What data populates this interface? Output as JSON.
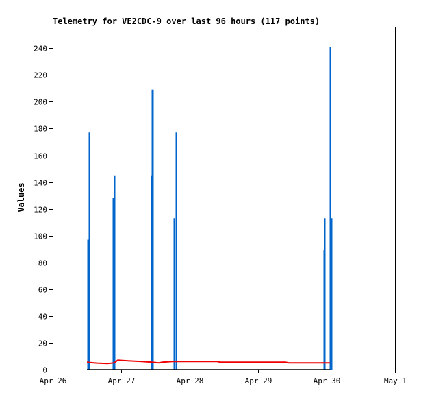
{
  "chart_data": {
    "type": "line",
    "title": "Telemetry for VE2CDC-9 over last 96 hours (117 points)",
    "xlabel": "",
    "ylabel": "Values",
    "x_axis": {
      "unit": "days since Apr 26 00:00",
      "range": [
        0,
        5
      ],
      "tick_labels": [
        "Apr 26",
        "Apr 27",
        "Apr 28",
        "Apr 29",
        "Apr 30",
        "May 1"
      ]
    },
    "y_axis": {
      "range": [
        0,
        256
      ],
      "ticks": [
        0,
        20,
        40,
        60,
        80,
        100,
        120,
        140,
        160,
        180,
        200,
        220,
        240
      ]
    },
    "grid": false,
    "legend": "none",
    "colors": {
      "series_blue": "#0066cc",
      "series_red": "#ee0000",
      "axis": "#000000"
    },
    "series": [
      {
        "color": "#0066cc",
        "style": "spikes",
        "points": [
          {
            "x": 0.51,
            "y": 97
          },
          {
            "x": 0.525,
            "y": 177
          },
          {
            "x": 0.88,
            "y": 128
          },
          {
            "x": 0.895,
            "y": 145
          },
          {
            "x": 1.44,
            "y": 145
          },
          {
            "x": 1.45,
            "y": 209
          },
          {
            "x": 1.46,
            "y": 209
          },
          {
            "x": 1.77,
            "y": 113
          },
          {
            "x": 1.8,
            "y": 177
          },
          {
            "x": 3.96,
            "y": 89
          },
          {
            "x": 3.97,
            "y": 113
          },
          {
            "x": 4.05,
            "y": 241
          },
          {
            "x": 4.065,
            "y": 113
          }
        ]
      },
      {
        "color": "#ee0000",
        "style": "line",
        "points": [
          {
            "x": 0.5,
            "y": 5.5
          },
          {
            "x": 0.6,
            "y": 5
          },
          {
            "x": 0.65,
            "y": 4.8
          },
          {
            "x": 0.8,
            "y": 4.5
          },
          {
            "x": 0.9,
            "y": 5
          },
          {
            "x": 0.95,
            "y": 7
          },
          {
            "x": 1.1,
            "y": 6.5
          },
          {
            "x": 1.3,
            "y": 6
          },
          {
            "x": 1.45,
            "y": 5.5
          },
          {
            "x": 1.55,
            "y": 5
          },
          {
            "x": 1.6,
            "y": 5.5
          },
          {
            "x": 1.75,
            "y": 6
          },
          {
            "x": 1.8,
            "y": 6
          },
          {
            "x": 1.85,
            "y": 6
          },
          {
            "x": 2.4,
            "y": 6
          },
          {
            "x": 2.45,
            "y": 5.5
          },
          {
            "x": 3.4,
            "y": 5.5
          },
          {
            "x": 3.45,
            "y": 5
          },
          {
            "x": 4.05,
            "y": 5
          }
        ]
      },
      {
        "color": "#000000",
        "style": "baseline",
        "points": [
          {
            "x": 0.5,
            "y": 0
          },
          {
            "x": 4.05,
            "y": 0
          }
        ]
      }
    ]
  }
}
